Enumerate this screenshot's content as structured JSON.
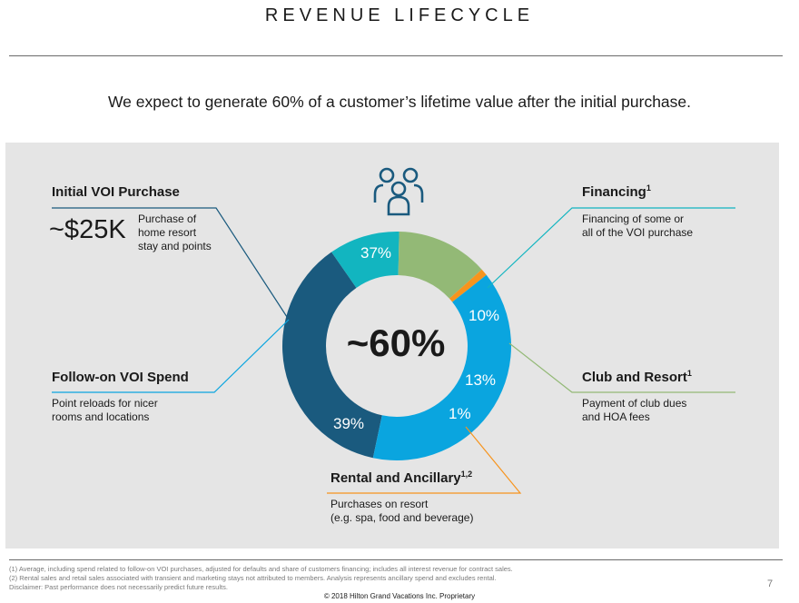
{
  "slide": {
    "title": "REVENUE LIFECYCLE",
    "subtitle": "We expect to generate 60% of a customer’s lifetime value after the initial purchase.",
    "page_number": "7",
    "copyright": "© 2018 Hilton Grand Vacations Inc. Proprietary",
    "footnotes": [
      "(1) Average, including spend related to follow-on VOI purchases, adjusted for defaults and share of customers financing; includes all interest revenue for contract sales.",
      "(2) Rental sales and retail sales associated with transient and marketing stays not attributed to members. Analysis represents ancillary spend and excludes rental.",
      "Disclaimer: Past performance does not necessarily predict future results."
    ]
  },
  "callouts": {
    "initial": {
      "title": "Initial VOI Purchase",
      "sup": "",
      "big_value": "~$25K",
      "desc": [
        "Purchase of",
        "home resort",
        "stay and points"
      ]
    },
    "financing": {
      "title": "Financing",
      "sup": "1",
      "desc": [
        "Financing of some or",
        "all of the VOI purchase"
      ]
    },
    "followon": {
      "title": "Follow-on VOI Spend",
      "sup": "",
      "desc": [
        "Point reloads for nicer",
        "rooms and locations"
      ]
    },
    "club": {
      "title": "Club and Resort",
      "sup": "1",
      "desc": [
        "Payment of club dues",
        "and HOA fees"
      ]
    },
    "rental": {
      "title": "Rental and Ancillary",
      "sup": "1,2",
      "desc": [
        "Purchases on resort",
        "(e.g. spa, food and beverage)"
      ]
    }
  },
  "center_value": "~60%",
  "icon": "people-group-icon",
  "colors": {
    "initial": "#1a5a7e",
    "financing": "#12b5c0",
    "club": "#93b976",
    "rental": "#f7941d",
    "followon": "#0aa5df",
    "panel": "#e5e5e5"
  },
  "chart_data": {
    "type": "pie",
    "donut": true,
    "categories": [
      "Initial VOI Purchase",
      "Financing",
      "Club and Resort",
      "Rental and Ancillary",
      "Follow-on VOI Spend"
    ],
    "values": [
      37,
      10,
      13,
      1,
      39
    ],
    "labels": [
      "37%",
      "10%",
      "13%",
      "1%",
      "39%"
    ],
    "center_label": "~60%"
  }
}
